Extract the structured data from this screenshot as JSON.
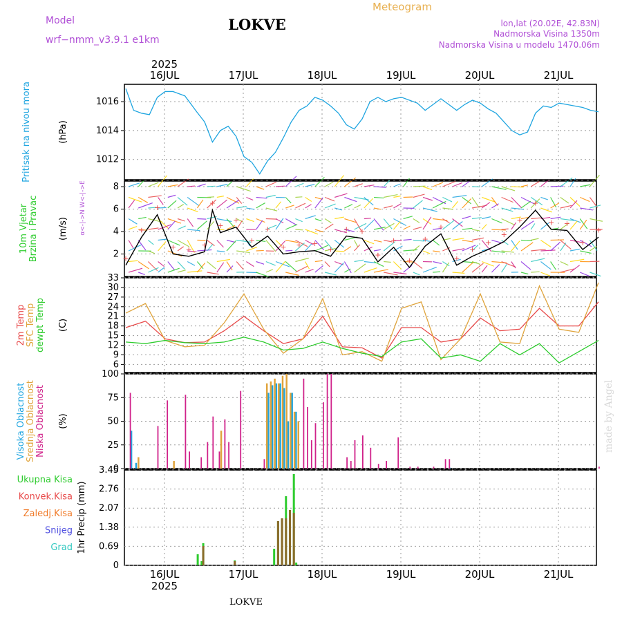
{
  "header": {
    "model_label": "Model",
    "model_name": "wrf−nmm_v3.9.1  e1km",
    "location": "LOKVE",
    "meteogram": "Meteogram",
    "coords": "lon,lat (20.02E, 42.83N)",
    "elevation": "Nadmorska Visina 1350m",
    "model_elevation": "Nadmorska Visina u modelu 1470.06m",
    "year": "2025",
    "credit": "made by Angel",
    "footer": "LOKVE"
  },
  "colors": {
    "pressure": "#1fa5e0",
    "t2m": "#e84a4a",
    "sfc": "#e0a43c",
    "dewpt": "#2ecc2e",
    "high_cloud": "#1fa5e0",
    "mid_cloud": "#e0a43c",
    "low_cloud": "#d0228a",
    "total_precip": "#2ecc2e",
    "conv_precip": "#e84a4a",
    "frozen_precip": "#f07a28",
    "snow": "#5050e0",
    "hail": "#30c8c0",
    "purple_text": "#b04fd6",
    "orange_text": "#e8b050"
  },
  "chart_data": [
    {
      "type": "line",
      "panel": "pressure",
      "title": "",
      "ylabel": "(hPa)",
      "side_labels": [
        "Pritisak na nivou mora"
      ],
      "ylim": [
        1010.6,
        1017.2
      ],
      "yticks": [
        1012,
        1014,
        1016
      ],
      "xlabels_top": [
        "16JUL",
        "17JUL",
        "18JUL",
        "19JUL",
        "20JUL",
        "21JUL"
      ],
      "grid": true,
      "series": [
        {
          "x": [
            0,
            0.1,
            0.2,
            0.3,
            0.4,
            0.5,
            0.6,
            0.75,
            0.9,
            1.0,
            1.1,
            1.2,
            1.3,
            1.4,
            1.5,
            1.6,
            1.7,
            1.8,
            1.9,
            2.0,
            2.1,
            2.2,
            2.3,
            2.4,
            2.5,
            2.6,
            2.7,
            2.8,
            2.9,
            3.0,
            3.1,
            3.2,
            3.3,
            3.4,
            3.5,
            3.6,
            3.7,
            3.8,
            3.9,
            4.0,
            4.1,
            4.2,
            4.3,
            4.4,
            4.5,
            4.6,
            4.7,
            4.8,
            4.9,
            5.0,
            5.1,
            5.2,
            5.3,
            5.4,
            5.5,
            5.6,
            5.7,
            5.8,
            5.9,
            6.0
          ],
          "values": [
            1016.9,
            1015.4,
            1015.2,
            1015.1,
            1016.3,
            1016.7,
            1016.7,
            1016.4,
            1015.3,
            1014.6,
            1013.2,
            1014.0,
            1014.3,
            1013.6,
            1012.2,
            1011.8,
            1011.0,
            1011.9,
            1012.5,
            1013.5,
            1014.6,
            1015.4,
            1015.7,
            1016.3,
            1016.1,
            1015.7,
            1015.2,
            1014.4,
            1014.1,
            1014.8,
            1016.0,
            1016.3,
            1016.0,
            1016.2,
            1016.3,
            1016.1,
            1015.9,
            1015.4,
            1015.8,
            1016.2,
            1015.8,
            1015.4,
            1015.8,
            1016.1,
            1015.9,
            1015.5,
            1015.2,
            1014.6,
            1014.0,
            1013.7,
            1013.9,
            1015.2,
            1015.7,
            1015.6,
            1015.9,
            1015.8,
            1015.7,
            1015.6,
            1015.4,
            1015.3
          ]
        }
      ]
    },
    {
      "type": "line",
      "panel": "wind",
      "ylabel": "(m/s)",
      "side_labels": [
        "10m Vjetar",
        "Brzina i Pravac"
      ],
      "compass": "α<-|->N  W<-|->E",
      "ylim": [
        0,
        8.5
      ],
      "yticks": [
        2,
        4,
        6,
        8
      ],
      "grid": true,
      "series": [
        {
          "x": [
            0,
            0.2,
            0.4,
            0.6,
            0.8,
            1.0,
            1.1,
            1.2,
            1.4,
            1.6,
            1.8,
            2.0,
            2.2,
            2.4,
            2.6,
            2.8,
            3.0,
            3.2,
            3.4,
            3.6,
            3.8,
            4.0,
            4.2,
            4.4,
            4.6,
            4.8,
            5.0,
            5.2,
            5.4,
            5.6,
            5.8,
            6.0
          ],
          "values": [
            1.0,
            3.5,
            5.5,
            2.0,
            1.8,
            2.2,
            5.9,
            3.9,
            4.4,
            2.6,
            3.6,
            2.0,
            2.2,
            2.3,
            1.8,
            3.6,
            3.4,
            1.3,
            2.6,
            0.8,
            2.7,
            3.8,
            1.0,
            1.8,
            2.4,
            3.1,
            4.4,
            5.9,
            4.2,
            4.1,
            2.4,
            3.5
          ]
        }
      ]
    },
    {
      "type": "line",
      "panel": "temperature",
      "ylabel": "(C)",
      "side_labels": [
        "2m Temp",
        "SFC Temp",
        "dewpt Temp"
      ],
      "ylim": [
        3.5,
        33
      ],
      "yticks": [
        6,
        9,
        12,
        15,
        18,
        21,
        24,
        27,
        30,
        33
      ],
      "grid": true,
      "x": [
        0,
        0.25,
        0.5,
        0.75,
        1.0,
        1.25,
        1.5,
        1.75,
        2.0,
        2.25,
        2.5,
        2.75,
        3.0,
        3.25,
        3.5,
        3.75,
        4.0,
        4.25,
        4.5,
        4.75,
        5.0,
        5.25,
        5.5,
        5.75,
        6.0
      ],
      "series": [
        {
          "name": "2m Temp",
          "values": [
            17.5,
            19.5,
            14.0,
            12.8,
            13.0,
            16.5,
            21.0,
            16.5,
            12.5,
            14.0,
            21.0,
            11.5,
            11.2,
            8.0,
            17.5,
            17.5,
            13.0,
            14.0,
            20.5,
            16.5,
            17.0,
            23.5,
            18.0,
            18.0,
            25.5
          ]
        },
        {
          "name": "SFC Temp",
          "values": [
            22.0,
            25.0,
            13.5,
            11.5,
            12.0,
            19.0,
            28.0,
            17.0,
            9.5,
            14.0,
            26.5,
            9.0,
            10.0,
            7.0,
            23.5,
            25.5,
            7.5,
            14.0,
            28.0,
            13.0,
            12.5,
            30.5,
            17.0,
            16.0,
            31.5
          ]
        },
        {
          "name": "dewpt Temp",
          "values": [
            13.0,
            12.5,
            13.5,
            12.8,
            12.5,
            13.0,
            14.5,
            13.0,
            10.5,
            11.0,
            13.0,
            11.0,
            9.5,
            8.5,
            13.0,
            14.0,
            8.0,
            9.0,
            7.0,
            12.5,
            9.0,
            12.5,
            6.5,
            10.0,
            13.5
          ]
        }
      ]
    },
    {
      "type": "bar",
      "panel": "cloud",
      "ylabel": "(%)",
      "side_labels": [
        "Visoka Oblacnost",
        "Srednja Oblacnost",
        "Niska Oblacnost"
      ],
      "ylim": [
        0,
        100
      ],
      "yticks": [
        0,
        25,
        50,
        75,
        100
      ],
      "grid": true,
      "series": [
        {
          "name": "Visoka Oblacnost",
          "x": [
            0.06,
            0.12,
            1.8,
            1.85,
            1.9,
            1.95,
            2.0,
            2.05,
            2.1,
            2.15,
            4.1
          ],
          "values": [
            40,
            6,
            80,
            88,
            90,
            90,
            85,
            50,
            80,
            60,
            1
          ]
        },
        {
          "name": "Srednja Oblacnost",
          "x": [
            0.15,
            0.6,
            1.2,
            1.78,
            1.83,
            1.88,
            1.93,
            1.98,
            2.03,
            2.08,
            2.13,
            2.18
          ],
          "values": [
            12,
            8,
            40,
            90,
            92,
            95,
            90,
            98,
            100,
            80,
            60,
            50
          ]
        },
        {
          "name": "Niska Oblacnost",
          "x": [
            0.05,
            0.4,
            0.52,
            0.75,
            0.8,
            0.95,
            1.03,
            1.1,
            1.18,
            1.25,
            1.3,
            1.45,
            1.75,
            2.25,
            2.3,
            2.35,
            2.4,
            2.5,
            2.55,
            2.6,
            2.8,
            2.85,
            2.9,
            3.0,
            3.1,
            3.2,
            3.3,
            3.45,
            3.6,
            3.7,
            3.9,
            4.05,
            4.1,
            6.0
          ],
          "values": [
            80,
            45,
            72,
            78,
            18,
            12,
            28,
            55,
            18,
            52,
            28,
            82,
            10,
            95,
            65,
            30,
            48,
            70,
            100,
            100,
            12,
            8,
            30,
            35,
            22,
            5,
            8,
            33,
            2,
            2,
            2,
            10,
            10,
            2
          ]
        }
      ]
    },
    {
      "type": "bar",
      "panel": "precip",
      "ylabel": "1hr Precip (mm)",
      "side_labels": [
        "Ukupna Kisa",
        "Konvek.Kisa",
        "Zaledj.Kisa",
        "Snijeg",
        "Grad"
      ],
      "ylim": [
        0,
        3.45
      ],
      "yticks": [
        0,
        0.69,
        1.38,
        2.07,
        2.76,
        3.45
      ],
      "xlabels_bottom": [
        "16JUL",
        "17JUL",
        "18JUL",
        "19JUL",
        "20JUL",
        "21JUL"
      ],
      "grid": true,
      "series": [
        {
          "name": "Ukupna Kisa",
          "x": [
            0.9,
            0.95,
            0.97,
            1.37,
            1.87,
            1.92,
            1.97,
            2.02,
            2.07,
            2.12,
            2.15
          ],
          "values": [
            0.4,
            0.15,
            0.8,
            0.18,
            0.6,
            1.6,
            1.7,
            2.5,
            2.0,
            3.3,
            0.1
          ]
        },
        {
          "name": "Konvek.Kisa",
          "x": [
            0.97,
            1.37,
            1.92,
            1.97,
            2.02,
            2.07,
            2.12
          ],
          "values": [
            0.7,
            0.15,
            1.6,
            1.7,
            1.7,
            2.0,
            1.9
          ]
        }
      ]
    }
  ]
}
